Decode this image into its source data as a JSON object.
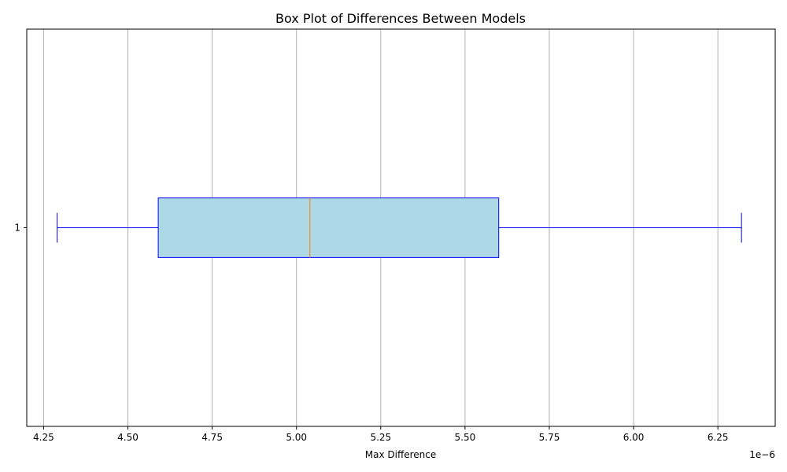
{
  "chart_data": {
    "type": "boxplot",
    "orientation": "horizontal",
    "title": "Box Plot of Differences Between Models",
    "xlabel": "Max Difference",
    "ylabel": "",
    "x_offset_label": "1e−6",
    "x_scale_multiplier": 1e-06,
    "xlim": [
      4.2,
      6.42
    ],
    "xticks": [
      4.25,
      4.5,
      4.75,
      5.0,
      5.25,
      5.5,
      5.75,
      6.0,
      6.25
    ],
    "xtick_labels": [
      "4.25",
      "4.50",
      "4.75",
      "5.00",
      "5.25",
      "5.50",
      "5.75",
      "6.00",
      "6.25"
    ],
    "categories": [
      "1"
    ],
    "boxes": [
      {
        "category": "1",
        "whisker_low": 4.29,
        "q1": 4.59,
        "median": 5.04,
        "q3": 5.6,
        "whisker_high": 6.32
      }
    ],
    "grid": {
      "x": true,
      "y": false
    },
    "colors": {
      "box_fill": "#add8e6",
      "box_edge": "#0000ff",
      "whisker": "#0000ff",
      "median": "#ff7f0e",
      "grid": "#b0b0b0",
      "axes": "#000000"
    }
  }
}
